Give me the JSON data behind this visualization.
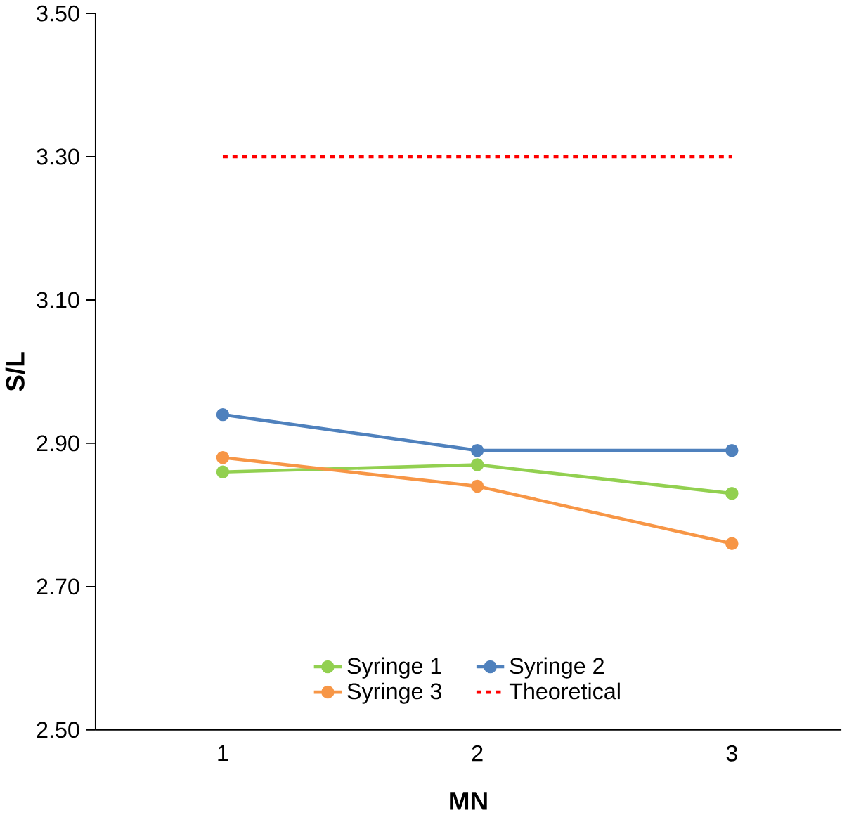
{
  "chart_data": {
    "type": "line",
    "xlabel": "MN",
    "ylabel": "S/L",
    "categories": [
      "1",
      "2",
      "3"
    ],
    "series": [
      {
        "name": "Syringe 1",
        "color": "#92d050",
        "values": [
          2.86,
          2.87,
          2.83
        ],
        "marker": "circle",
        "line_style": "solid"
      },
      {
        "name": "Syringe 2",
        "color": "#4f81bd",
        "values": [
          2.94,
          2.89,
          2.89
        ],
        "marker": "circle",
        "line_style": "solid"
      },
      {
        "name": "Syringe 3",
        "color": "#f79646",
        "values": [
          2.88,
          2.84,
          2.76
        ],
        "marker": "circle",
        "line_style": "solid"
      },
      {
        "name": "Theoretical",
        "color": "#ff0000",
        "values": [
          3.3,
          3.3,
          3.3
        ],
        "marker": "none",
        "line_style": "dashed"
      }
    ],
    "ylim": [
      2.5,
      3.5
    ],
    "yticks": [
      {
        "value": 2.5,
        "label": "2.50"
      },
      {
        "value": 2.7,
        "label": "2.70"
      },
      {
        "value": 2.9,
        "label": "2.90"
      },
      {
        "value": 3.1,
        "label": "3.10"
      },
      {
        "value": 3.3,
        "label": "3.30"
      },
      {
        "value": 3.5,
        "label": "3.50"
      }
    ],
    "grid": false,
    "legend": "bottom"
  }
}
